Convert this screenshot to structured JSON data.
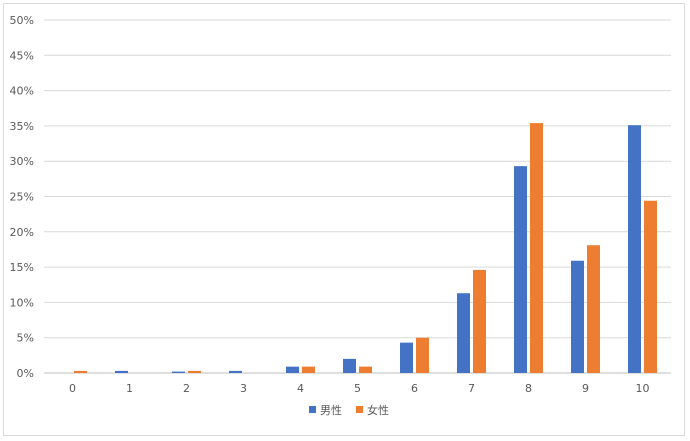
{
  "chart_data": {
    "type": "bar",
    "categories": [
      "0",
      "1",
      "2",
      "3",
      "4",
      "5",
      "6",
      "7",
      "8",
      "9",
      "10"
    ],
    "series": [
      {
        "name": "男性",
        "color": "#4472c4",
        "values": [
          0.0,
          0.3,
          0.2,
          0.3,
          0.9,
          2.0,
          4.3,
          11.3,
          29.3,
          15.9,
          35.1
        ]
      },
      {
        "name": "女性",
        "color": "#ed7d31",
        "values": [
          0.3,
          0.0,
          0.3,
          0.0,
          0.9,
          0.9,
          5.0,
          14.6,
          35.4,
          18.1,
          24.4
        ]
      }
    ],
    "y_ticks": [
      "0%",
      "5%",
      "10%",
      "15%",
      "20%",
      "25%",
      "30%",
      "35%",
      "40%",
      "45%",
      "50%"
    ],
    "ylim": [
      0,
      50
    ],
    "grid": true,
    "legend": "bottom",
    "title": "",
    "xlabel": "",
    "ylabel": ""
  }
}
